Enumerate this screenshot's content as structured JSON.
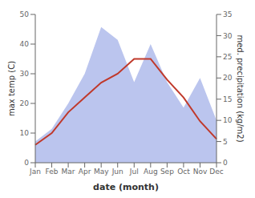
{
  "chart_data": {
    "type": "combo",
    "categories": [
      "Jan",
      "Feb",
      "Mar",
      "Apr",
      "May",
      "Jun",
      "Jul",
      "Aug",
      "Sep",
      "Oct",
      "Nov",
      "Dec"
    ],
    "xlabel": "date (month)",
    "ylabel": "max temp (C)",
    "y2label": "med. precipitation (kg/m2)",
    "series": [
      {
        "type": "area",
        "axis": "y2",
        "color": "#bbc5ee",
        "values": [
          5,
          8,
          14,
          21,
          32,
          29,
          19,
          28,
          19,
          13,
          20,
          10
        ]
      },
      {
        "type": "line",
        "axis": "y",
        "color": "#c0392b",
        "values": [
          6,
          10,
          17,
          22,
          27,
          30,
          35,
          35,
          28,
          22,
          14,
          8
        ]
      }
    ],
    "ylim": [
      0,
      50
    ],
    "yticks": [
      0,
      10,
      20,
      30,
      40,
      50
    ],
    "y2lim": [
      0,
      35
    ],
    "y2ticks": [
      0,
      5,
      10,
      15,
      20,
      25,
      30,
      35
    ],
    "grid": false
  }
}
